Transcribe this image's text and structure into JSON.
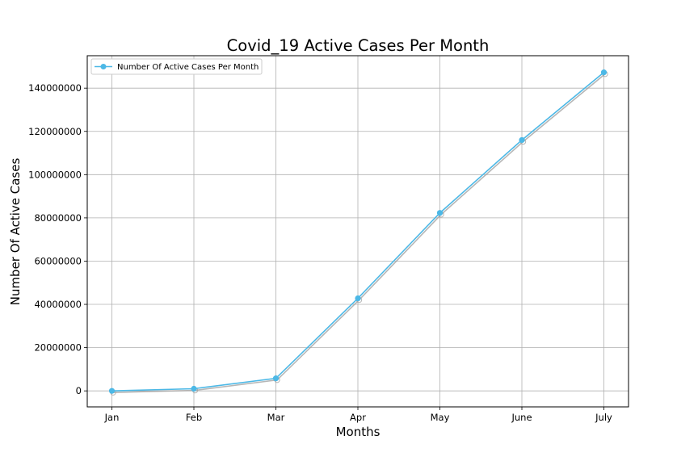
{
  "chart_data": {
    "type": "line",
    "title": "Covid_19 Active Cases Per Month",
    "xlabel": "Months",
    "ylabel": "Number Of Active Cases",
    "categories": [
      "Jan",
      "Feb",
      "Mar",
      "Apr",
      "May",
      "June",
      "July"
    ],
    "series": [
      {
        "name": "Number Of Active Cases Per Month",
        "values": [
          0,
          1000000,
          5800000,
          42800000,
          82300000,
          116000000,
          147300000
        ],
        "color": "#4cb8e6",
        "shadow_color": "#9e9e9e",
        "marker": "circle"
      }
    ],
    "ylim": [
      -7400000,
      155000000
    ],
    "yticks": [
      0,
      20000000,
      40000000,
      60000000,
      80000000,
      100000000,
      120000000,
      140000000
    ],
    "ytick_labels": [
      "0",
      "20000000",
      "40000000",
      "60000000",
      "80000000",
      "100000000",
      "120000000",
      "140000000"
    ],
    "grid": true,
    "legend_position": "top-left"
  }
}
